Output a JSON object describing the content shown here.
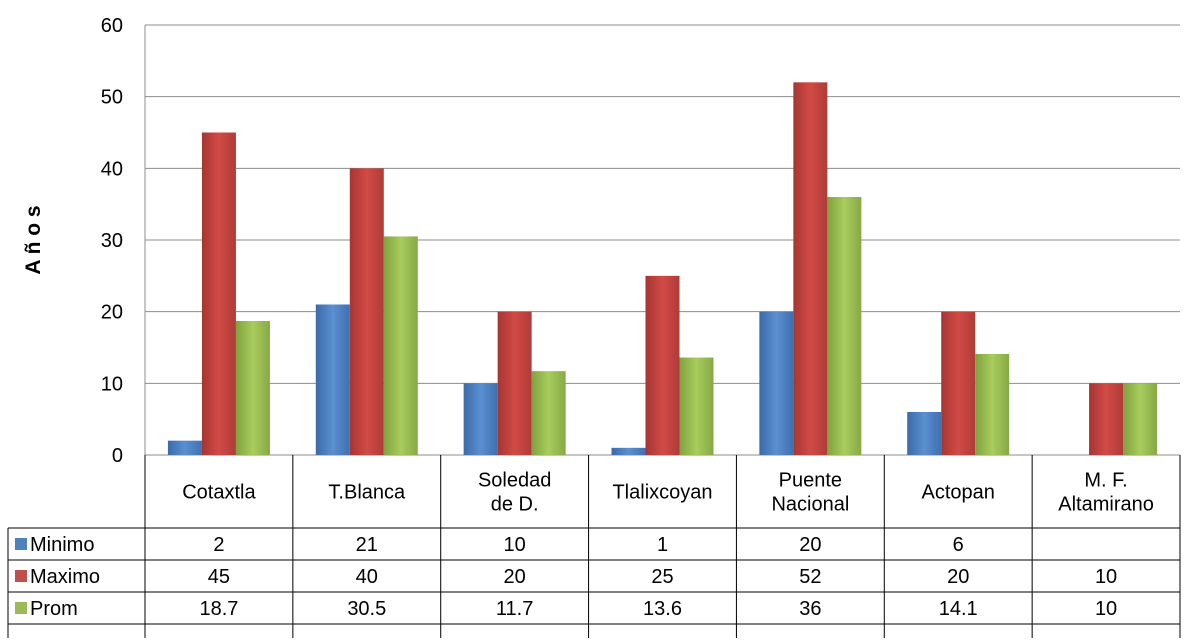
{
  "chart_data": {
    "type": "bar",
    "title": "",
    "xlabel": "",
    "ylabel": "A ñ o s",
    "ylim": [
      0,
      60
    ],
    "yticks": [
      0,
      10,
      20,
      30,
      40,
      50,
      60
    ],
    "grid": true,
    "legend": "data-table-left",
    "categories": [
      [
        "Cotaxtla"
      ],
      [
        "T.Blanca"
      ],
      [
        "Soledad",
        "de  D."
      ],
      [
        "Tlalixcoyan"
      ],
      [
        "Puente",
        "Nacional"
      ],
      [
        "Actopan"
      ],
      [
        "M. F.",
        "Altamirano"
      ]
    ],
    "series": [
      {
        "name": "Minimo",
        "color": "#4f81bd",
        "values": [
          2,
          21,
          10,
          1,
          20,
          6,
          null
        ],
        "labels": [
          "2",
          "21",
          "10",
          "1",
          "20",
          "6",
          ""
        ]
      },
      {
        "name": "Maximo",
        "color": "#c0504d",
        "values": [
          45,
          40,
          20,
          25,
          52,
          20,
          10
        ],
        "labels": [
          "45",
          "40",
          "20",
          "25",
          "52",
          "20",
          "10"
        ]
      },
      {
        "name": "Prom",
        "color": "#9bbb59",
        "values": [
          18.7,
          30.5,
          11.7,
          13.6,
          36,
          14.1,
          10
        ],
        "labels": [
          "18.7",
          "30.5",
          "11.7",
          "13.6",
          "36",
          "14.1",
          "10"
        ]
      }
    ]
  }
}
